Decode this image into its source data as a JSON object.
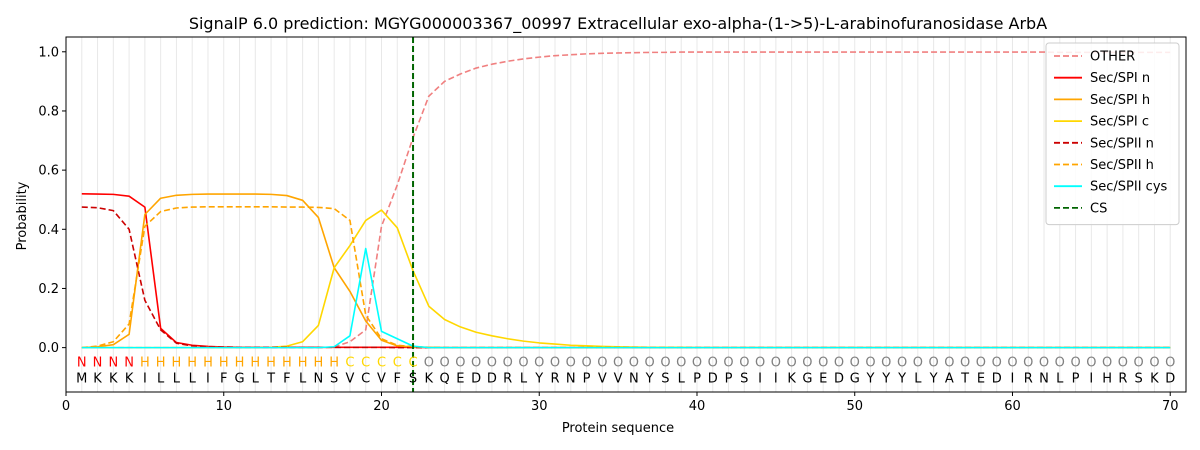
{
  "chart_data": {
    "type": "line",
    "title": "SignalP 6.0 prediction: MGYG000003367_00997 Extracellular exo-alpha-(1->5)-L-arabinofuranosidase ArbA",
    "xlabel": "Protein sequence",
    "ylabel": "Probability",
    "xlim": [
      0,
      71
    ],
    "ylim": [
      -0.15,
      1.05
    ],
    "x_ticks": [
      0,
      10,
      20,
      30,
      40,
      50,
      60,
      70
    ],
    "y_ticks": [
      0.0,
      0.2,
      0.4,
      0.6,
      0.8,
      1.0
    ],
    "x_tick_labels": [
      "0",
      "10",
      "20",
      "30",
      "40",
      "50",
      "60",
      "70"
    ],
    "y_tick_labels": [
      "0.0",
      "0.2",
      "0.4",
      "0.6",
      "0.8",
      "1.0"
    ],
    "grid": "vertical lines at each residue",
    "legend_position": "top-right",
    "sequence": [
      "M",
      "K",
      "K",
      "K",
      "I",
      "L",
      "L",
      "L",
      "I",
      "F",
      "G",
      "L",
      "T",
      "F",
      "L",
      "N",
      "S",
      "V",
      "C",
      "V",
      "F",
      "S",
      "K",
      "Q",
      "E",
      "D",
      "D",
      "R",
      "L",
      "Y",
      "R",
      "N",
      "P",
      "V",
      "V",
      "N",
      "Y",
      "S",
      "L",
      "P",
      "D",
      "P",
      "S",
      "I",
      "I",
      "K",
      "G",
      "E",
      "D",
      "G",
      "Y",
      "Y",
      "Y",
      "L",
      "Y",
      "A",
      "T",
      "E",
      "D",
      "I",
      "R",
      "N",
      "L",
      "P",
      "I",
      "H",
      "R",
      "S",
      "K",
      "D"
    ],
    "annotation": [
      "N",
      "N",
      "N",
      "N",
      "H",
      "H",
      "H",
      "H",
      "H",
      "H",
      "H",
      "H",
      "H",
      "H",
      "H",
      "H",
      "H",
      "C",
      "C",
      "C",
      "C",
      "C",
      "O",
      "O",
      "O",
      "O",
      "O",
      "O",
      "O",
      "O",
      "O",
      "O",
      "O",
      "O",
      "O",
      "O",
      "O",
      "O",
      "O",
      "O",
      "O",
      "O",
      "O",
      "O",
      "O",
      "O",
      "O",
      "O",
      "O",
      "O",
      "O",
      "O",
      "O",
      "O",
      "O",
      "O",
      "O",
      "O",
      "O",
      "O",
      "O",
      "O",
      "O",
      "O",
      "O",
      "O",
      "O",
      "O",
      "O",
      "O"
    ],
    "annotation_colors": {
      "N": "#ff0000",
      "H": "#ffa500",
      "C": "#ffd700",
      "O": "#808080"
    },
    "cleavage_site": 22,
    "series": [
      {
        "name": "OTHER",
        "color": "#f08080",
        "dash": "dashed",
        "values": [
          0.0,
          0.0,
          0.0,
          0.0,
          0.0,
          0.0,
          0.0,
          0.0,
          0.0,
          0.0,
          0.0,
          0.0,
          0.0,
          0.0,
          0.0,
          0.0,
          0.002,
          0.02,
          0.06,
          0.41,
          0.55,
          0.71,
          0.85,
          0.9,
          0.925,
          0.945,
          0.958,
          0.968,
          0.976,
          0.982,
          0.987,
          0.99,
          0.993,
          0.995,
          0.996,
          0.997,
          0.998,
          0.998,
          0.999,
          0.999,
          0.999,
          0.999,
          0.999,
          0.999,
          0.999,
          0.999,
          0.999,
          0.999,
          0.999,
          0.999,
          0.999,
          0.999,
          0.999,
          0.999,
          0.999,
          0.999,
          0.999,
          0.999,
          0.999,
          0.999,
          0.999,
          0.999,
          0.998,
          0.998,
          0.998,
          0.998,
          0.998,
          0.998,
          0.998,
          0.998
        ]
      },
      {
        "name": "Sec/SPI n",
        "color": "#ff0000",
        "dash": "solid",
        "values": [
          0.52,
          0.519,
          0.518,
          0.512,
          0.475,
          0.065,
          0.017,
          0.008,
          0.004,
          0.002,
          0.001,
          0.001,
          0.001,
          0.001,
          0.001,
          0.001,
          0.001,
          0.001,
          0.001,
          0.001,
          0.001,
          0.001,
          0.0,
          0.0,
          0.0,
          0.0,
          0.0,
          0.0,
          0.0,
          0.0,
          0.0,
          0.0,
          0.0,
          0.0,
          0.0,
          0.0,
          0.0,
          0.0,
          0.0,
          0.0,
          0.0,
          0.0,
          0.0,
          0.0,
          0.0,
          0.0,
          0.0,
          0.0,
          0.0,
          0.0,
          0.0,
          0.0,
          0.0,
          0.0,
          0.0,
          0.0,
          0.0,
          0.0,
          0.0,
          0.0,
          0.0,
          0.0,
          0.0,
          0.0,
          0.0,
          0.0,
          0.0,
          0.0,
          0.0,
          0.0
        ]
      },
      {
        "name": "Sec/SPI h",
        "color": "#ffa500",
        "dash": "solid",
        "values": [
          0.0,
          0.003,
          0.01,
          0.045,
          0.45,
          0.505,
          0.515,
          0.518,
          0.519,
          0.519,
          0.519,
          0.519,
          0.518,
          0.514,
          0.498,
          0.44,
          0.27,
          0.19,
          0.09,
          0.025,
          0.006,
          0.002,
          0.001,
          0.0,
          0.0,
          0.0,
          0.0,
          0.0,
          0.0,
          0.0,
          0.0,
          0.0,
          0.0,
          0.0,
          0.0,
          0.0,
          0.0,
          0.0,
          0.0,
          0.0,
          0.0,
          0.0,
          0.0,
          0.0,
          0.0,
          0.0,
          0.0,
          0.0,
          0.0,
          0.0,
          0.0,
          0.0,
          0.0,
          0.0,
          0.0,
          0.0,
          0.0,
          0.0,
          0.0,
          0.0,
          0.0,
          0.0,
          0.0,
          0.0,
          0.0,
          0.0,
          0.0,
          0.0,
          0.0,
          0.0
        ]
      },
      {
        "name": "Sec/SPI c",
        "color": "#ffd700",
        "dash": "solid",
        "values": [
          0.0,
          0.0,
          0.0,
          0.0,
          0.0,
          0.0,
          0.0,
          0.0,
          0.0,
          0.0,
          0.0,
          0.0,
          0.001,
          0.005,
          0.02,
          0.075,
          0.27,
          0.345,
          0.43,
          0.465,
          0.405,
          0.26,
          0.14,
          0.095,
          0.07,
          0.052,
          0.04,
          0.03,
          0.022,
          0.016,
          0.012,
          0.008,
          0.006,
          0.004,
          0.003,
          0.002,
          0.001,
          0.001,
          0.001,
          0.0,
          0.0,
          0.0,
          0.0,
          0.0,
          0.0,
          0.0,
          0.0,
          0.0,
          0.0,
          0.0,
          0.0,
          0.0,
          0.0,
          0.0,
          0.0,
          0.0,
          0.0,
          0.0,
          0.0,
          0.0,
          0.0,
          0.0,
          0.0,
          0.0,
          0.0,
          0.0,
          0.0,
          0.0,
          0.0,
          0.0
        ]
      },
      {
        "name": "Sec/SPII n",
        "color": "#cc0000",
        "dash": "dashed",
        "values": [
          0.475,
          0.473,
          0.463,
          0.4,
          0.16,
          0.06,
          0.015,
          0.006,
          0.003,
          0.002,
          0.001,
          0.001,
          0.001,
          0.001,
          0.001,
          0.001,
          0.001,
          0.001,
          0.001,
          0.001,
          0.0,
          0.0,
          0.0,
          0.0,
          0.0,
          0.0,
          0.0,
          0.0,
          0.0,
          0.0,
          0.0,
          0.0,
          0.0,
          0.0,
          0.0,
          0.0,
          0.0,
          0.0,
          0.0,
          0.0,
          0.0,
          0.0,
          0.0,
          0.0,
          0.0,
          0.0,
          0.0,
          0.0,
          0.0,
          0.0,
          0.0,
          0.0,
          0.0,
          0.0,
          0.0,
          0.0,
          0.0,
          0.0,
          0.0,
          0.0,
          0.0,
          0.0,
          0.0,
          0.0,
          0.0,
          0.0,
          0.0,
          0.0,
          0.0,
          0.0
        ]
      },
      {
        "name": "Sec/SPII h",
        "color": "#ffa500",
        "dash": "dashed",
        "values": [
          0.0,
          0.005,
          0.02,
          0.08,
          0.41,
          0.46,
          0.472,
          0.475,
          0.476,
          0.476,
          0.476,
          0.476,
          0.476,
          0.475,
          0.475,
          0.474,
          0.47,
          0.43,
          0.11,
          0.03,
          0.008,
          0.003,
          0.001,
          0.0,
          0.0,
          0.0,
          0.0,
          0.0,
          0.0,
          0.0,
          0.0,
          0.0,
          0.0,
          0.0,
          0.0,
          0.0,
          0.0,
          0.0,
          0.0,
          0.0,
          0.0,
          0.0,
          0.0,
          0.0,
          0.0,
          0.0,
          0.0,
          0.0,
          0.0,
          0.0,
          0.0,
          0.0,
          0.0,
          0.0,
          0.0,
          0.0,
          0.0,
          0.0,
          0.0,
          0.0,
          0.0,
          0.0,
          0.0,
          0.0,
          0.0,
          0.0,
          0.0,
          0.0,
          0.0,
          0.0
        ]
      },
      {
        "name": "Sec/SPII cys",
        "color": "#00ffff",
        "dash": "solid",
        "values": [
          0.0,
          0.0,
          0.0,
          0.0,
          0.0,
          0.0,
          0.0,
          0.0,
          0.0,
          0.0,
          0.0,
          0.0,
          0.0,
          0.0,
          0.0,
          0.0,
          0.003,
          0.04,
          0.335,
          0.055,
          0.03,
          0.005,
          0.0,
          0.0,
          0.0,
          0.0,
          0.0,
          0.0,
          0.0,
          0.0,
          0.0,
          0.0,
          0.0,
          0.0,
          0.0,
          0.0,
          0.0,
          0.0,
          0.0,
          0.0,
          0.0,
          0.0,
          0.0,
          0.0,
          0.0,
          0.0,
          0.0,
          0.0,
          0.0,
          0.0,
          0.0,
          0.0,
          0.0,
          0.0,
          0.0,
          0.0,
          0.0,
          0.0,
          0.0,
          0.0,
          0.0,
          0.0,
          0.0,
          0.0,
          0.0,
          0.0,
          0.0,
          0.0,
          0.0,
          0.0
        ]
      }
    ],
    "cs_legend": {
      "name": "CS",
      "color": "#006400",
      "dash": "dashed"
    }
  }
}
